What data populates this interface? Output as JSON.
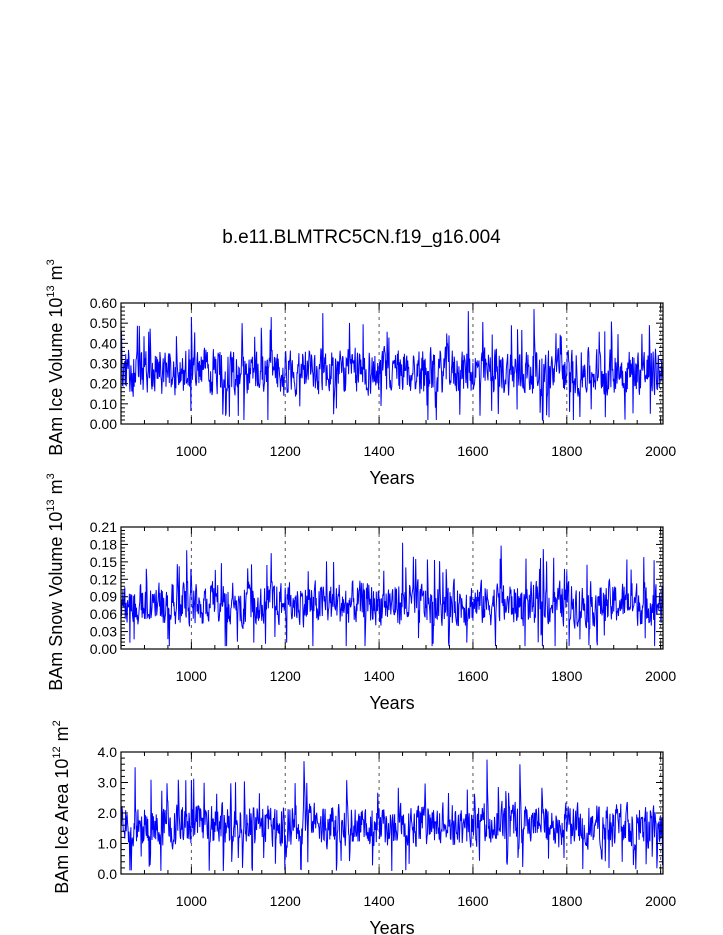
{
  "title": "b.e11.BLMTRC5CN.f19_g16.004",
  "colors": {
    "series": "#0000ff",
    "axis": "#000000",
    "ref_line": "#555555"
  },
  "chart_data": [
    {
      "type": "line",
      "title": "b.e11.BLMTRC5CN.f19_g16.004",
      "xlabel": "Years",
      "ylabel": {
        "prefix": "BAm Ice Volume 10",
        "sup1": "13",
        "mid": " m",
        "sup2": "3"
      },
      "xlim": [
        850,
        2005
      ],
      "ylim": [
        0,
        0.6
      ],
      "x_ticks": [
        1000,
        1200,
        1400,
        1600,
        1800,
        2000
      ],
      "y_ticks": [
        "0.00",
        "0.10",
        "0.20",
        "0.30",
        "0.40",
        "0.50",
        "0.60"
      ],
      "y_tick_values": [
        0,
        0.1,
        0.2,
        0.3,
        0.4,
        0.5,
        0.6
      ],
      "ref_lines_x": [
        1000,
        1200,
        1400,
        1600,
        1800,
        2000
      ],
      "series": [
        {
          "mean": 0.26,
          "amplitude": 0.14,
          "min": 0.02,
          "max": 0.57,
          "peaks": [
            [
              1000,
              0.53
            ],
            [
              1170,
              0.53
            ],
            [
              1280,
              0.55
            ],
            [
              1590,
              0.56
            ],
            [
              1730,
              0.57
            ]
          ]
        }
      ]
    },
    {
      "type": "line",
      "xlabel": "Years",
      "ylabel": {
        "prefix": "BAm Snow Volume 10",
        "sup1": "13",
        "mid": " m",
        "sup2": "3"
      },
      "xlim": [
        850,
        2005
      ],
      "ylim": [
        0,
        0.21
      ],
      "x_ticks": [
        1000,
        1200,
        1400,
        1600,
        1800,
        2000
      ],
      "y_ticks": [
        "0.00",
        "0.03",
        "0.06",
        "0.09",
        "0.12",
        "0.15",
        "0.18",
        "0.21"
      ],
      "y_tick_values": [
        0,
        0.03,
        0.06,
        0.09,
        0.12,
        0.15,
        0.18,
        0.21
      ],
      "ref_lines_x": [
        1000,
        1200,
        1400,
        1600,
        1800,
        2000
      ],
      "series": [
        {
          "mean": 0.078,
          "amplitude": 0.045,
          "min": 0.005,
          "max": 0.183,
          "peaks": [
            [
              990,
              0.17
            ],
            [
              1170,
              0.165
            ],
            [
              1450,
              0.183
            ],
            [
              1660,
              0.178
            ],
            [
              1750,
              0.172
            ]
          ]
        }
      ]
    },
    {
      "type": "line",
      "xlabel": "Years",
      "ylabel": {
        "prefix": "BAm Ice Area 10",
        "sup1": "12",
        "mid": " m",
        "sup2": "2"
      },
      "xlim": [
        850,
        2005
      ],
      "ylim": [
        0,
        4
      ],
      "x_ticks": [
        1000,
        1200,
        1400,
        1600,
        1800,
        2000
      ],
      "y_ticks": [
        "0.0",
        "1.0",
        "2.0",
        "3.0",
        "4.0"
      ],
      "y_tick_values": [
        0,
        1,
        2,
        3,
        4
      ],
      "ref_lines_x": [
        1000,
        1200,
        1400,
        1600,
        1800,
        2000
      ],
      "series": [
        {
          "mean": 1.6,
          "amplitude": 0.85,
          "min": 0.1,
          "max": 3.75,
          "peaks": [
            [
              880,
              3.5
            ],
            [
              1240,
              3.7
            ],
            [
              1630,
              3.75
            ],
            [
              1700,
              3.6
            ]
          ]
        }
      ]
    }
  ]
}
